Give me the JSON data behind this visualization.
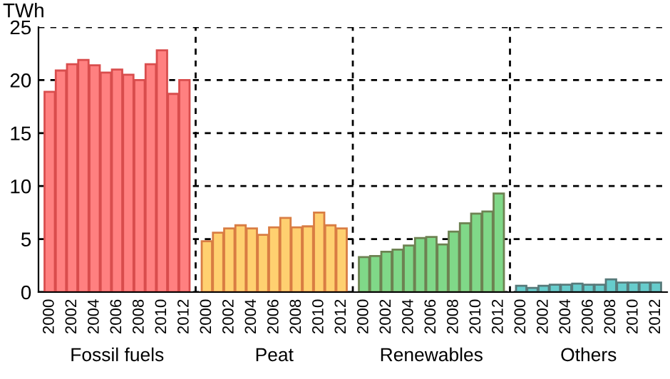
{
  "chart_data": {
    "type": "bar",
    "ylabel": "TWh",
    "categories": [
      "2000",
      null,
      "2002",
      null,
      "2004",
      null,
      "2006",
      null,
      "2008",
      null,
      "2010",
      null,
      "2012",
      null,
      "2000",
      null,
      "2002",
      null,
      "2004",
      null,
      "2006",
      null,
      "2008",
      null,
      "2010",
      null,
      "2012",
      null,
      "2000",
      null,
      "2002",
      null,
      "2004",
      null,
      "2006",
      null,
      "2008",
      null,
      "2010",
      null,
      "2012",
      null,
      "2000",
      null,
      "2002",
      null,
      "2004",
      null,
      "2006",
      null,
      "2008",
      null,
      "2010",
      null,
      "2012"
    ],
    "series": [
      {
        "name": "Fossil fuels",
        "color": "#ff8080",
        "values": [
          18.9,
          20.9,
          21.5,
          21.9,
          21.4,
          20.7,
          21.0,
          20.5,
          20.0,
          21.5,
          22.8,
          18.7,
          20.0,
          null,
          null,
          null,
          null,
          null,
          null,
          null,
          null,
          null,
          null,
          null,
          null,
          null,
          null,
          null,
          null,
          null,
          null,
          null,
          null,
          null,
          null,
          null,
          null,
          null,
          null,
          null,
          null,
          null,
          null,
          null,
          null,
          null,
          null,
          null,
          null,
          null,
          null,
          null,
          null,
          null,
          null
        ]
      },
      {
        "name": "Peat",
        "color": "#ffd070",
        "values": [
          null,
          null,
          null,
          null,
          null,
          null,
          null,
          null,
          null,
          null,
          null,
          null,
          null,
          null,
          4.8,
          5.6,
          6.0,
          6.3,
          6.0,
          5.4,
          6.1,
          7.0,
          6.1,
          6.2,
          7.5,
          6.3,
          6.0,
          null,
          null,
          null,
          null,
          null,
          null,
          null,
          null,
          null,
          null,
          null,
          null,
          null,
          null,
          null,
          null,
          null,
          null,
          null,
          null,
          null,
          null,
          null,
          null,
          null,
          null,
          null,
          null
        ]
      },
      {
        "name": "Renewables",
        "color": "#80d888",
        "values": [
          null,
          null,
          null,
          null,
          null,
          null,
          null,
          null,
          null,
          null,
          null,
          null,
          null,
          null,
          null,
          null,
          null,
          null,
          null,
          null,
          null,
          null,
          null,
          null,
          null,
          null,
          null,
          null,
          3.3,
          3.4,
          3.8,
          4.0,
          4.4,
          5.1,
          5.2,
          4.5,
          5.7,
          6.5,
          7.4,
          7.6,
          9.3,
          null,
          null,
          null,
          null,
          null,
          null,
          null,
          null,
          null,
          null,
          null,
          null,
          null,
          null
        ]
      },
      {
        "name": "Others",
        "color": "#66cccc",
        "values": [
          null,
          null,
          null,
          null,
          null,
          null,
          null,
          null,
          null,
          null,
          null,
          null,
          null,
          null,
          null,
          null,
          null,
          null,
          null,
          null,
          null,
          null,
          null,
          null,
          null,
          null,
          null,
          null,
          null,
          null,
          null,
          null,
          null,
          null,
          null,
          null,
          null,
          null,
          null,
          null,
          null,
          null,
          0.6,
          0.4,
          0.6,
          0.7,
          0.7,
          0.8,
          0.7,
          0.7,
          1.2,
          0.9,
          0.9,
          0.9,
          0.9
        ]
      }
    ],
    "ylim": [
      0,
      25
    ],
    "yticks": [
      0,
      5,
      10,
      15,
      20,
      25
    ],
    "grid": "y",
    "legend": false
  }
}
